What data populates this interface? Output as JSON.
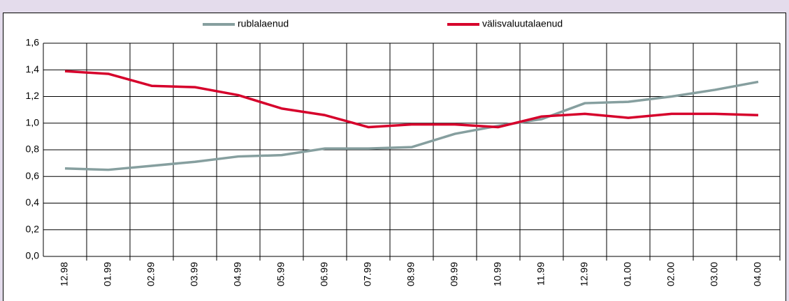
{
  "chart_data": {
    "type": "line",
    "categories": [
      "12.98",
      "01.99",
      "02.99",
      "03.99",
      "04.99",
      "05.99",
      "06.99",
      "07.99",
      "08.99",
      "09.99",
      "10.99",
      "11.99",
      "12.99",
      "01.00",
      "02.00",
      "03.00",
      "04.00"
    ],
    "series": [
      {
        "name": "rublalaenud",
        "color": "#869f9f",
        "values": [
          0.66,
          0.65,
          0.68,
          0.71,
          0.75,
          0.76,
          0.81,
          0.81,
          0.82,
          0.92,
          0.98,
          1.03,
          1.15,
          1.16,
          1.2,
          1.25,
          1.31
        ]
      },
      {
        "name": "välisvaluutalaenud",
        "color": "#d6002b",
        "values": [
          1.39,
          1.37,
          1.28,
          1.27,
          1.21,
          1.11,
          1.06,
          0.97,
          0.99,
          0.99,
          0.97,
          1.05,
          1.07,
          1.04,
          1.07,
          1.07,
          1.06
        ]
      }
    ],
    "ylim": [
      0,
      1.6
    ],
    "yticks": [
      {
        "value": 0,
        "label": "0,0"
      },
      {
        "value": 0.2,
        "label": "0,2"
      },
      {
        "value": 0.4,
        "label": "0,4"
      },
      {
        "value": 0.6,
        "label": "0,6"
      },
      {
        "value": 0.8,
        "label": "0,8"
      },
      {
        "value": 1,
        "label": "1,0"
      },
      {
        "value": 1.2,
        "label": "1,2"
      },
      {
        "value": 1.4,
        "label": "1,4"
      },
      {
        "value": 1.6,
        "label": "1,6"
      }
    ],
    "grid": true,
    "legend": "top"
  }
}
